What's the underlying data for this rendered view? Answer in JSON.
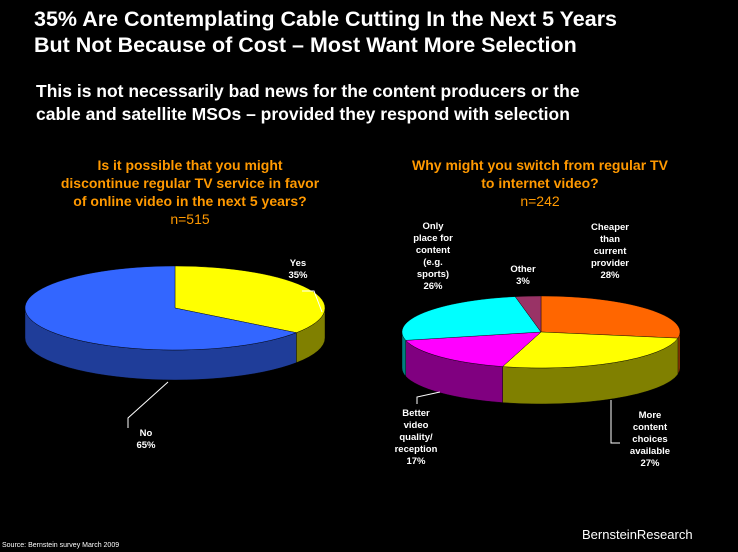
{
  "title": [
    "35% Are Contemplating Cable Cutting In the Next 5 Years",
    "But Not Because of Cost – Most Want More Selection"
  ],
  "subtitle": [
    "This is not necessarily bad news for the content producers or the",
    "cable and satellite MSOs – provided they respond with selection"
  ],
  "footer": {
    "source": "Source: Bernstein survey March 2009",
    "brand": "BernsteinResearch"
  },
  "chart_data": [
    {
      "type": "pie",
      "title": [
        "Is it possible that you might",
        "discontinue regular TV service in favor",
        "of online video in the next 5 years?"
      ],
      "n": "n=515",
      "slices": [
        {
          "label": "Yes",
          "pct": "35%",
          "value": 35,
          "color": "#ffff00",
          "side": "#808000"
        },
        {
          "label": "No",
          "pct": "65%",
          "value": 65,
          "color": "#3366ff",
          "side": "#1f3d99"
        }
      ]
    },
    {
      "type": "pie",
      "title": [
        "Why might you switch from regular TV",
        "to internet video?"
      ],
      "n": "n=242",
      "slices": [
        {
          "label": "Cheaper than current provider",
          "lines": [
            "Cheaper",
            "than",
            "current",
            "provider"
          ],
          "pct": "28%",
          "value": 28,
          "color": "#ff6600",
          "side": "#993d00"
        },
        {
          "label": "More content choices available",
          "lines": [
            "More",
            "content",
            "choices",
            "available"
          ],
          "pct": "27%",
          "value": 27,
          "color": "#ffff00",
          "side": "#808000"
        },
        {
          "label": "Better video quality/ reception",
          "lines": [
            "Better",
            "video",
            "quality/",
            "reception"
          ],
          "pct": "17%",
          "value": 17,
          "color": "#ff00ff",
          "side": "#800080"
        },
        {
          "label": "Only place for content (e.g. sports)",
          "lines": [
            "Only",
            "place for",
            "content",
            "(e.g.",
            "sports)"
          ],
          "pct": "26%",
          "value": 26,
          "color": "#00ffff",
          "side": "#008080"
        },
        {
          "label": "Other",
          "lines": [
            "Other"
          ],
          "pct": "3%",
          "value": 3,
          "color": "#993366",
          "side": "#5c1f3d"
        }
      ]
    }
  ]
}
